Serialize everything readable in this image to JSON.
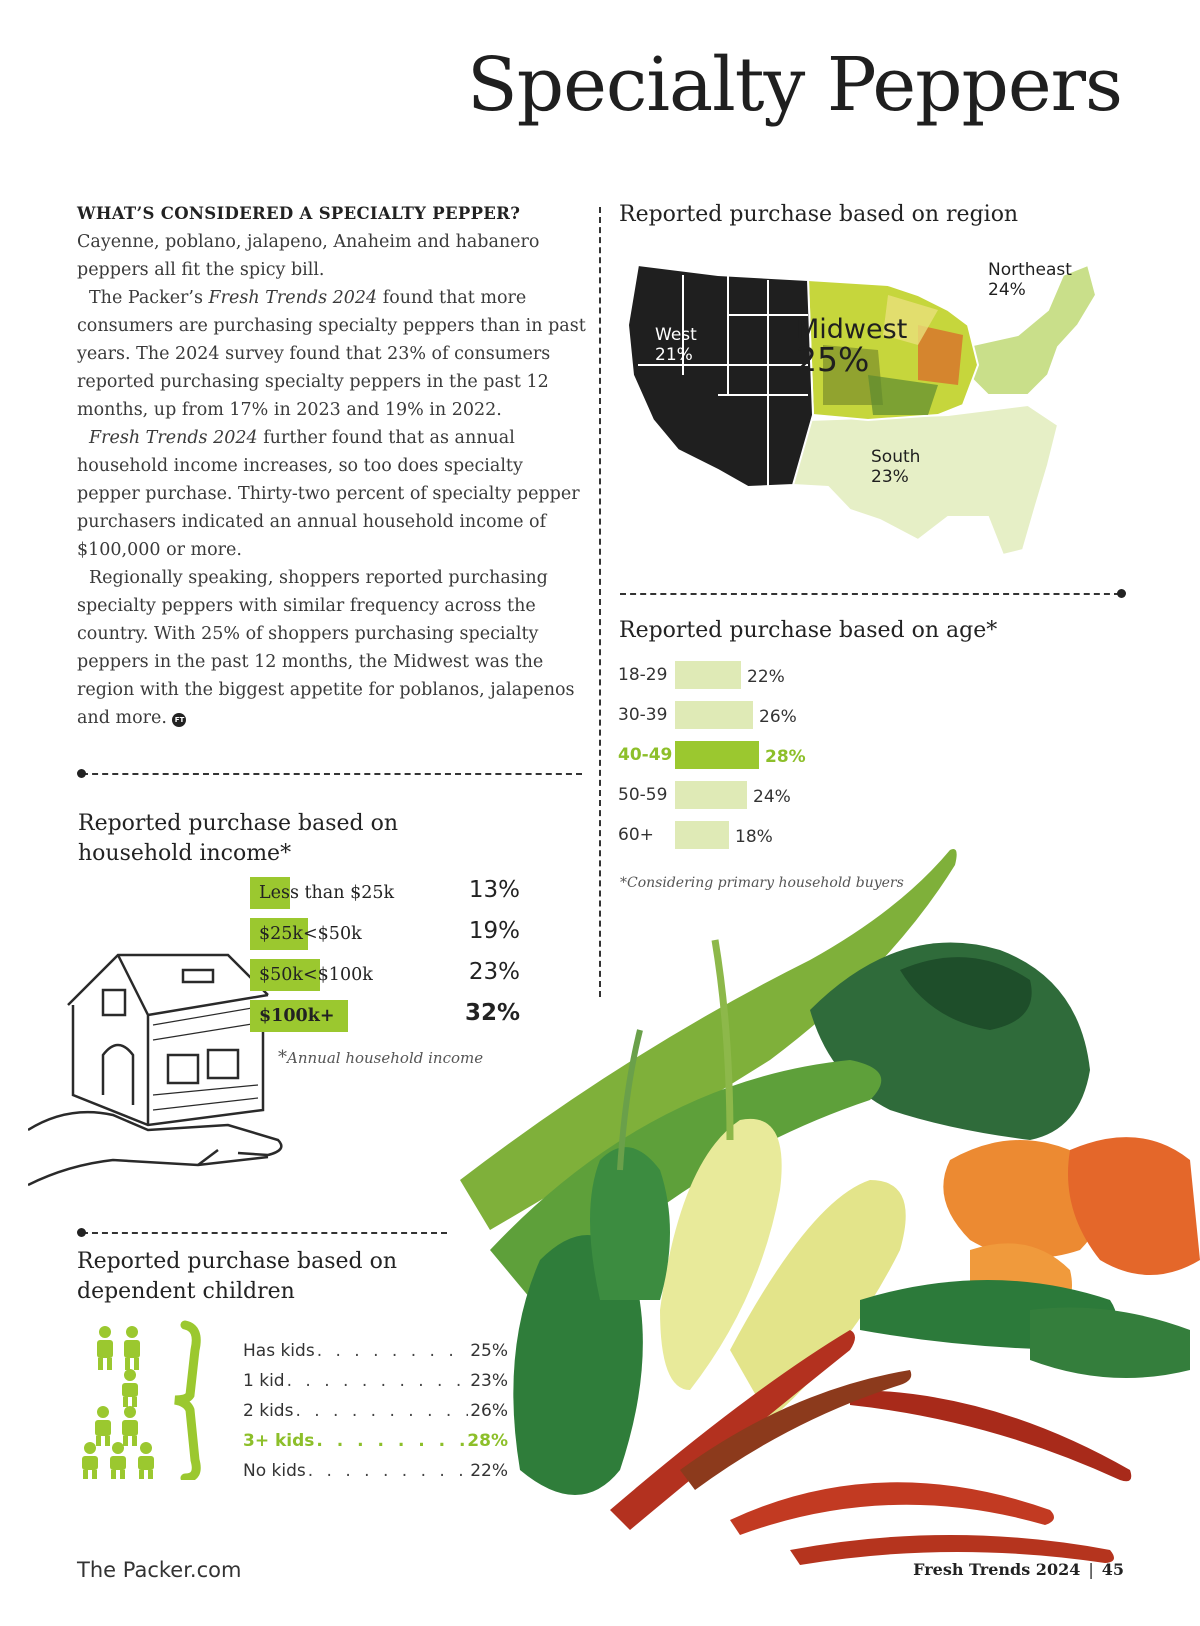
{
  "title": "Specialty Peppers",
  "article": {
    "heading": "WHAT’S CONSIDERED A SPECIALTY PEPPER?",
    "p1": "Cayenne, poblano, jalapeno, Anaheim and habanero peppers all fit the spicy bill.",
    "p2_a": "The Packer’s ",
    "p2_em": "Fresh Trends 2024",
    "p2_b": " found that more consumers are purchasing specialty peppers than in past years. The 2024 survey found that 23% of consumers reported purchasing specialty peppers in the past 12 months, up from 17% in 2023 and 19% in 2022.",
    "p3_em": "Fresh Trends 2024",
    "p3_b": " further found that as annual household income increases, so too does specialty pepper purchase. Thirty-two percent of specialty pepper purchasers indicated an annual household income of $100,000 or more.",
    "p4": "Regionally speaking, shoppers reported purchasing specialty peppers with similar frequency across the country. With 25% of shoppers purchasing specialty peppers in the past 12 months, the Midwest was the region with the biggest appetite for poblanos, jalapenos and more.",
    "badge": "FT"
  },
  "region": {
    "title": "Reported purchase based on region",
    "items": [
      {
        "name": "West",
        "value": "21%"
      },
      {
        "name": "Midwest",
        "value": "25%"
      },
      {
        "name": "Northeast",
        "value": "24%"
      },
      {
        "name": "South",
        "value": "23%"
      }
    ]
  },
  "age": {
    "title": "Reported purchase based on age*",
    "note": "*Considering primary household buyers",
    "highlight_color": "#9bc82f",
    "bar_color": "#dfeab6"
  },
  "income": {
    "title_line1": "Reported purchase based on",
    "title_line2": "household income*",
    "note_star": "*",
    "note": "Annual household income"
  },
  "kids": {
    "title_line1": "Reported purchase based on",
    "title_line2": "dependent children",
    "rows": [
      {
        "label": "Has kids",
        "value": "25%"
      },
      {
        "label": "1 kid",
        "value": "23%"
      },
      {
        "label": "2 kids",
        "value": "26%"
      },
      {
        "label": "3+ kids",
        "value": "28%"
      },
      {
        "label": "No kids",
        "value": "22%"
      }
    ]
  },
  "footer": {
    "left": "The Packer.com",
    "right": "Fresh Trends 2024",
    "sep": "|",
    "page": "45"
  },
  "chart_data": [
    {
      "type": "bar",
      "title": "Reported purchase based on age*",
      "categories": [
        "18-29",
        "30-39",
        "40-49",
        "50-59",
        "60+"
      ],
      "values": [
        22,
        26,
        28,
        24,
        18
      ],
      "value_labels": [
        "22%",
        "26%",
        "28%",
        "24%",
        "18%"
      ],
      "highlight": "40-49"
    },
    {
      "type": "bar",
      "title": "Reported purchase based on household income*",
      "categories": [
        "Less than $25k",
        "$25k<$50k",
        "$50k<$100k",
        "$100k+"
      ],
      "values": [
        13,
        19,
        23,
        32
      ],
      "value_labels": [
        "13%",
        "19%",
        "23%",
        "32%"
      ],
      "highlight": "$100k+"
    }
  ]
}
